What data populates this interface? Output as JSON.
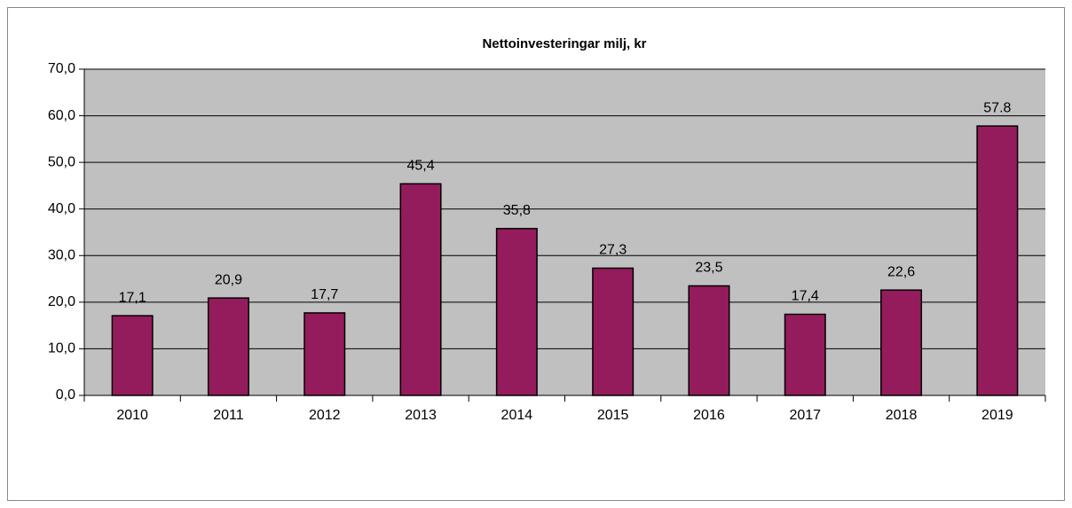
{
  "chart_data": {
    "type": "bar",
    "title": "Nettoinvesteringar milj, kr",
    "categories": [
      "2010",
      "2011",
      "2012",
      "2013",
      "2014",
      "2015",
      "2016",
      "2017",
      "2018",
      "2019"
    ],
    "values": [
      17.1,
      20.9,
      17.7,
      45.4,
      35.8,
      27.3,
      23.5,
      17.4,
      22.6,
      57.8
    ],
    "value_labels": [
      "17,1",
      "20,9",
      "17,7",
      "45,4",
      "35,8",
      "27,3",
      "23,5",
      "17,4",
      "22,6",
      "57.8"
    ],
    "color": "#951c5c",
    "ylim": [
      0,
      70
    ],
    "yticks": [
      {
        "value": 0,
        "label": "0,0"
      },
      {
        "value": 10,
        "label": "10,0"
      },
      {
        "value": 20,
        "label": "20,0"
      },
      {
        "value": 30,
        "label": "30,0"
      },
      {
        "value": 40,
        "label": "40,0"
      },
      {
        "value": 50,
        "label": "50,0"
      },
      {
        "value": 60,
        "label": "60,0"
      },
      {
        "value": 70,
        "label": "70,0"
      }
    ],
    "grid": true
  }
}
